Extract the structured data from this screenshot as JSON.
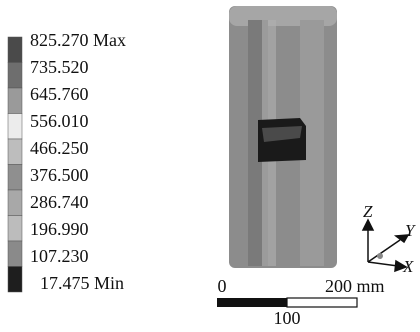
{
  "legend": {
    "levels": [
      "825.270 Max",
      "735.520",
      "645.760",
      "556.010",
      "466.250",
      "376.500",
      "286.740",
      "196.990",
      "107.230",
      "17.475 Min"
    ]
  },
  "scale_bar": {
    "start": "0",
    "end": "200 mm",
    "middle": "100"
  },
  "axes": {
    "z": "Z",
    "y": "Y",
    "x": "X"
  }
}
